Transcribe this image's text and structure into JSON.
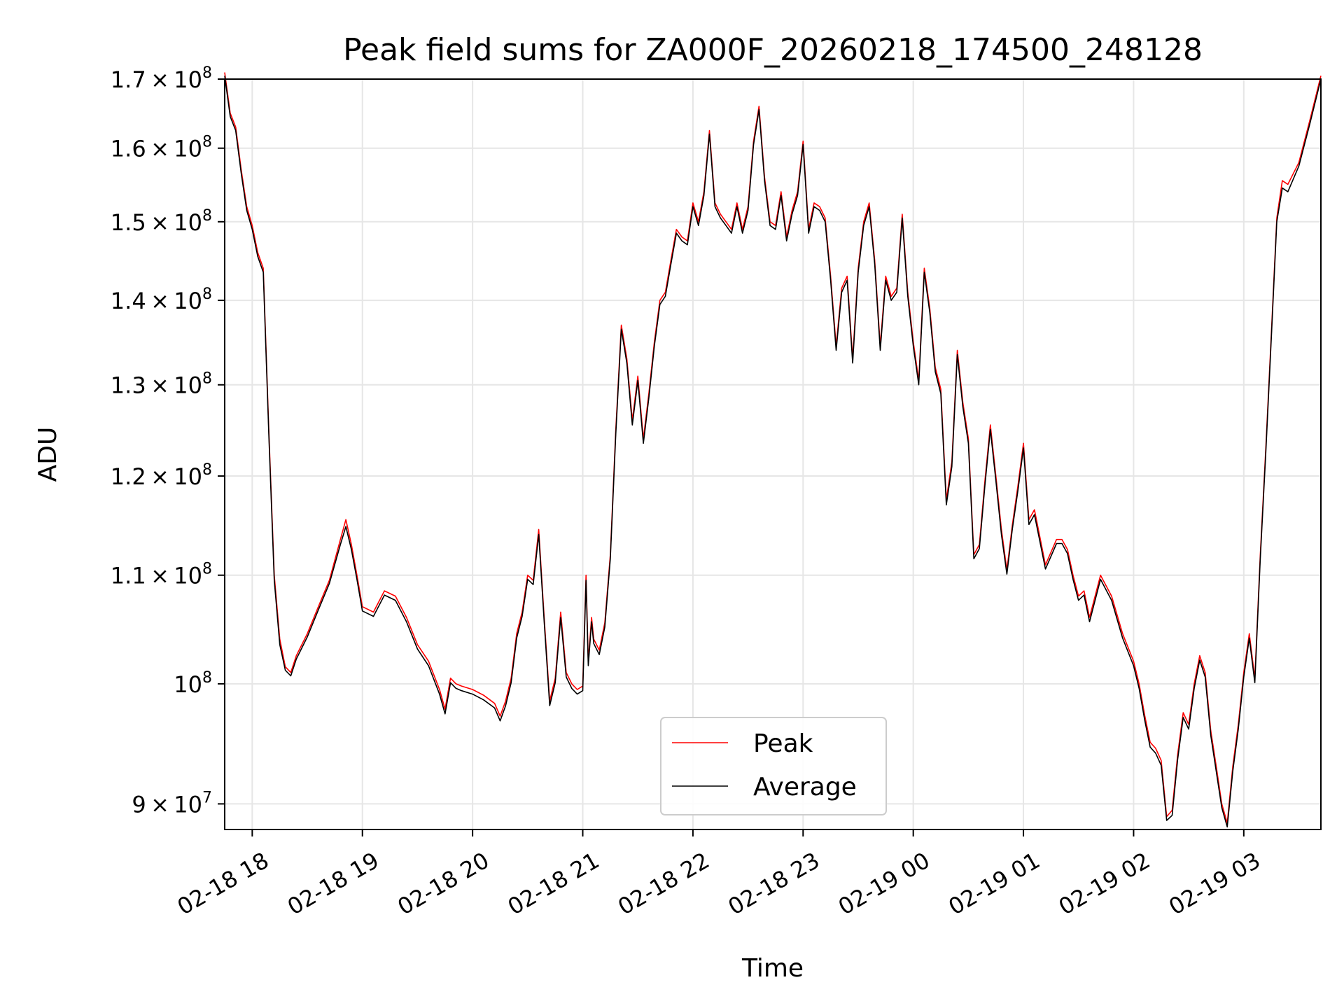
{
  "chart_data": {
    "type": "line",
    "title": "Peak field sums for ZA000F_20260218_174500_248128",
    "xlabel": "Time",
    "ylabel": "ADU",
    "yscale": "log",
    "grid": true,
    "legend_position": "bottom-center",
    "x_unit": "hours since 2026-02-18 00:00",
    "xlim": [
      17.75,
      27.7
    ],
    "ylim": [
      88000000,
      170000000
    ],
    "x_ticks": [
      {
        "value": 18,
        "label": "02-18 18"
      },
      {
        "value": 19,
        "label": "02-18 19"
      },
      {
        "value": 20,
        "label": "02-18 20"
      },
      {
        "value": 21,
        "label": "02-18 21"
      },
      {
        "value": 22,
        "label": "02-18 22"
      },
      {
        "value": 23,
        "label": "02-18 23"
      },
      {
        "value": 24,
        "label": "02-19 00"
      },
      {
        "value": 25,
        "label": "02-19 01"
      },
      {
        "value": 26,
        "label": "02-19 02"
      },
      {
        "value": 27,
        "label": "02-19 03"
      }
    ],
    "y_ticks": [
      {
        "value": 90000000,
        "mantissa": "9",
        "exponent": "7"
      },
      {
        "value": 100000000,
        "mantissa": "",
        "exponent": "8"
      },
      {
        "value": 110000000,
        "mantissa": "1.1",
        "exponent": "8"
      },
      {
        "value": 120000000,
        "mantissa": "1.2",
        "exponent": "8"
      },
      {
        "value": 130000000,
        "mantissa": "1.3",
        "exponent": "8"
      },
      {
        "value": 140000000,
        "mantissa": "1.4",
        "exponent": "8"
      },
      {
        "value": 150000000,
        "mantissa": "1.5",
        "exponent": "8"
      },
      {
        "value": 160000000,
        "mantissa": "1.6",
        "exponent": "8"
      },
      {
        "value": 170000000,
        "mantissa": "1.7",
        "exponent": "8"
      }
    ],
    "tick_base": "10",
    "tick_times": "×",
    "series": [
      {
        "name": "Peak",
        "color": "#ff0000",
        "x": [
          17.75,
          17.8,
          17.85,
          17.9,
          17.95,
          18.0,
          18.05,
          18.1,
          18.15,
          18.2,
          18.25,
          18.3,
          18.35,
          18.4,
          18.45,
          18.5,
          18.6,
          18.7,
          18.8,
          18.85,
          18.9,
          18.95,
          19.0,
          19.1,
          19.2,
          19.3,
          19.4,
          19.5,
          19.6,
          19.7,
          19.75,
          19.8,
          19.85,
          19.9,
          20.0,
          20.1,
          20.2,
          20.25,
          20.3,
          20.35,
          20.4,
          20.45,
          20.5,
          20.55,
          20.6,
          20.65,
          20.7,
          20.75,
          20.8,
          20.85,
          20.9,
          20.95,
          21.0,
          21.03,
          21.05,
          21.08,
          21.1,
          21.15,
          21.2,
          21.25,
          21.3,
          21.35,
          21.4,
          21.45,
          21.5,
          21.55,
          21.6,
          21.65,
          21.7,
          21.75,
          21.8,
          21.85,
          21.9,
          21.95,
          22.0,
          22.05,
          22.1,
          22.15,
          22.2,
          22.25,
          22.3,
          22.35,
          22.4,
          22.45,
          22.5,
          22.55,
          22.6,
          22.65,
          22.7,
          22.75,
          22.8,
          22.85,
          22.9,
          22.95,
          23.0,
          23.05,
          23.1,
          23.15,
          23.2,
          23.25,
          23.3,
          23.35,
          23.4,
          23.45,
          23.5,
          23.55,
          23.6,
          23.65,
          23.7,
          23.75,
          23.8,
          23.85,
          23.9,
          23.95,
          24.0,
          24.05,
          24.1,
          24.15,
          24.2,
          24.25,
          24.3,
          24.35,
          24.4,
          24.45,
          24.5,
          24.55,
          24.6,
          24.65,
          24.7,
          24.75,
          24.8,
          24.85,
          24.9,
          24.95,
          25.0,
          25.05,
          25.1,
          25.2,
          25.3,
          25.35,
          25.4,
          25.45,
          25.5,
          25.55,
          25.6,
          25.7,
          25.8,
          25.9,
          26.0,
          26.05,
          26.1,
          26.15,
          26.2,
          26.25,
          26.3,
          26.35,
          26.4,
          26.45,
          26.5,
          26.55,
          26.6,
          26.65,
          26.7,
          26.75,
          26.8,
          26.85,
          26.9,
          26.95,
          27.0,
          27.05,
          27.1,
          27.15,
          27.2,
          27.25,
          27.3,
          27.35,
          27.4,
          27.5,
          27.6,
          27.7
        ],
        "values": [
          171000000,
          165000000,
          163000000,
          157000000,
          152000000,
          149500000,
          146000000,
          144000000,
          125000000,
          110000000,
          104000000,
          101500000,
          101000000,
          102500000,
          103500000,
          104500000,
          107000000,
          109500000,
          113500000,
          115500000,
          113000000,
          110000000,
          107000000,
          106500000,
          108500000,
          108000000,
          106000000,
          103500000,
          102000000,
          99500000,
          97800000,
          100500000,
          100000000,
          99800000,
          99500000,
          99000000,
          98300000,
          97200000,
          98500000,
          100500000,
          104500000,
          106500000,
          110000000,
          109500000,
          114500000,
          106000000,
          98500000,
          100500000,
          106500000,
          101000000,
          100000000,
          99500000,
          99800000,
          110000000,
          102000000,
          106000000,
          104000000,
          103000000,
          105500000,
          112000000,
          125000000,
          137000000,
          133000000,
          126000000,
          131000000,
          124000000,
          129000000,
          135000000,
          140000000,
          141000000,
          145000000,
          149000000,
          148000000,
          147500000,
          152500000,
          150000000,
          154000000,
          162500000,
          152500000,
          151000000,
          150000000,
          149000000,
          152500000,
          149000000,
          152000000,
          161000000,
          166000000,
          156000000,
          150000000,
          149500000,
          154000000,
          148000000,
          151500000,
          154000000,
          161000000,
          149000000,
          152500000,
          152000000,
          150500000,
          143000000,
          134500000,
          141500000,
          143000000,
          133000000,
          144000000,
          150000000,
          152500000,
          145000000,
          134500000,
          143000000,
          140500000,
          141500000,
          151000000,
          141000000,
          135000000,
          130500000,
          144000000,
          139000000,
          132000000,
          129500000,
          117500000,
          121500000,
          134000000,
          128000000,
          124000000,
          112000000,
          113000000,
          119500000,
          125500000,
          120000000,
          114500000,
          110500000,
          115000000,
          119000000,
          123500000,
          115500000,
          116500000,
          111000000,
          113500000,
          113500000,
          112500000,
          110000000,
          108000000,
          108500000,
          106000000,
          110000000,
          108000000,
          104500000,
          102000000,
          100000000,
          97300000,
          95000000,
          94500000,
          93500000,
          89000000,
          89500000,
          94000000,
          97500000,
          96500000,
          100000000,
          102500000,
          101000000,
          96000000,
          93000000,
          90000000,
          88500000,
          93000000,
          96500000,
          101000000,
          104500000,
          100500000,
          112000000,
          123000000,
          136000000,
          150500000,
          155500000,
          155000000,
          158000000,
          164000000,
          170500000
        ]
      },
      {
        "name": "Average",
        "color": "#000000",
        "x": [
          17.75,
          17.8,
          17.85,
          17.9,
          17.95,
          18.0,
          18.05,
          18.1,
          18.15,
          18.2,
          18.25,
          18.3,
          18.35,
          18.4,
          18.45,
          18.5,
          18.6,
          18.7,
          18.8,
          18.85,
          18.9,
          18.95,
          19.0,
          19.1,
          19.2,
          19.3,
          19.4,
          19.5,
          19.6,
          19.7,
          19.75,
          19.8,
          19.85,
          19.9,
          20.0,
          20.1,
          20.2,
          20.25,
          20.3,
          20.35,
          20.4,
          20.45,
          20.5,
          20.55,
          20.6,
          20.65,
          20.7,
          20.75,
          20.8,
          20.85,
          20.9,
          20.95,
          21.0,
          21.03,
          21.05,
          21.08,
          21.1,
          21.15,
          21.2,
          21.25,
          21.3,
          21.35,
          21.4,
          21.45,
          21.5,
          21.55,
          21.6,
          21.65,
          21.7,
          21.75,
          21.8,
          21.85,
          21.9,
          21.95,
          22.0,
          22.05,
          22.1,
          22.15,
          22.2,
          22.25,
          22.3,
          22.35,
          22.4,
          22.45,
          22.5,
          22.55,
          22.6,
          22.65,
          22.7,
          22.75,
          22.8,
          22.85,
          22.9,
          22.95,
          23.0,
          23.05,
          23.1,
          23.15,
          23.2,
          23.25,
          23.3,
          23.35,
          23.4,
          23.45,
          23.5,
          23.55,
          23.6,
          23.65,
          23.7,
          23.75,
          23.8,
          23.85,
          23.9,
          23.95,
          24.0,
          24.05,
          24.1,
          24.15,
          24.2,
          24.25,
          24.3,
          24.35,
          24.4,
          24.45,
          24.5,
          24.55,
          24.6,
          24.65,
          24.7,
          24.75,
          24.8,
          24.85,
          24.9,
          24.95,
          25.0,
          25.05,
          25.1,
          25.2,
          25.3,
          25.35,
          25.4,
          25.45,
          25.5,
          25.55,
          25.6,
          25.7,
          25.8,
          25.9,
          26.0,
          26.05,
          26.1,
          26.15,
          26.2,
          26.25,
          26.3,
          26.35,
          26.4,
          26.45,
          26.5,
          26.55,
          26.6,
          26.65,
          26.7,
          26.75,
          26.8,
          26.85,
          26.9,
          26.95,
          27.0,
          27.05,
          27.1,
          27.15,
          27.2,
          27.25,
          27.3,
          27.35,
          27.4,
          27.5,
          27.6,
          27.7
        ],
        "values": [
          170500000,
          164500000,
          162500000,
          156500000,
          151500000,
          149000000,
          145500000,
          143500000,
          124500000,
          109500000,
          103500000,
          101200000,
          100700000,
          102200000,
          103200000,
          104200000,
          106700000,
          109200000,
          113000000,
          114800000,
          112500000,
          109600000,
          106600000,
          106100000,
          108100000,
          107600000,
          105600000,
          103100000,
          101600000,
          99100000,
          97400000,
          100100000,
          99600000,
          99400000,
          99100000,
          98600000,
          97900000,
          96800000,
          98100000,
          100100000,
          104100000,
          106100000,
          109600000,
          109100000,
          114000000,
          105600000,
          98100000,
          100100000,
          106000000,
          100600000,
          99600000,
          99100000,
          99400000,
          109500000,
          101600000,
          105600000,
          103600000,
          102600000,
          105100000,
          111600000,
          124500000,
          136500000,
          132500000,
          125500000,
          130500000,
          123500000,
          128500000,
          134500000,
          139500000,
          140500000,
          144500000,
          148500000,
          147500000,
          147000000,
          152000000,
          149500000,
          153500000,
          162000000,
          152000000,
          150500000,
          149500000,
          148500000,
          152000000,
          148500000,
          151500000,
          160500000,
          165500000,
          155500000,
          149500000,
          149000000,
          153500000,
          147500000,
          151000000,
          153500000,
          160500000,
          148500000,
          152000000,
          151500000,
          150000000,
          142500000,
          134000000,
          141000000,
          142500000,
          132500000,
          143500000,
          149500000,
          152000000,
          144500000,
          134000000,
          142500000,
          140000000,
          141000000,
          150500000,
          140500000,
          134500000,
          130000000,
          143500000,
          138500000,
          131500000,
          129000000,
          117000000,
          121000000,
          133500000,
          127500000,
          123500000,
          111600000,
          112600000,
          119000000,
          125000000,
          119500000,
          114000000,
          110100000,
          114600000,
          118500000,
          123000000,
          115000000,
          116000000,
          110600000,
          113100000,
          113100000,
          112100000,
          109600000,
          107600000,
          108100000,
          105600000,
          109600000,
          107600000,
          104100000,
          101600000,
          99600000,
          96900000,
          94600000,
          94100000,
          93100000,
          88700000,
          89100000,
          93600000,
          97100000,
          96100000,
          99600000,
          102100000,
          100600000,
          95600000,
          92600000,
          89700000,
          88200000,
          92600000,
          96100000,
          100600000,
          104100000,
          100100000,
          111600000,
          122500000,
          135500000,
          150000000,
          154500000,
          154000000,
          157500000,
          163500000,
          170000000
        ]
      }
    ]
  }
}
